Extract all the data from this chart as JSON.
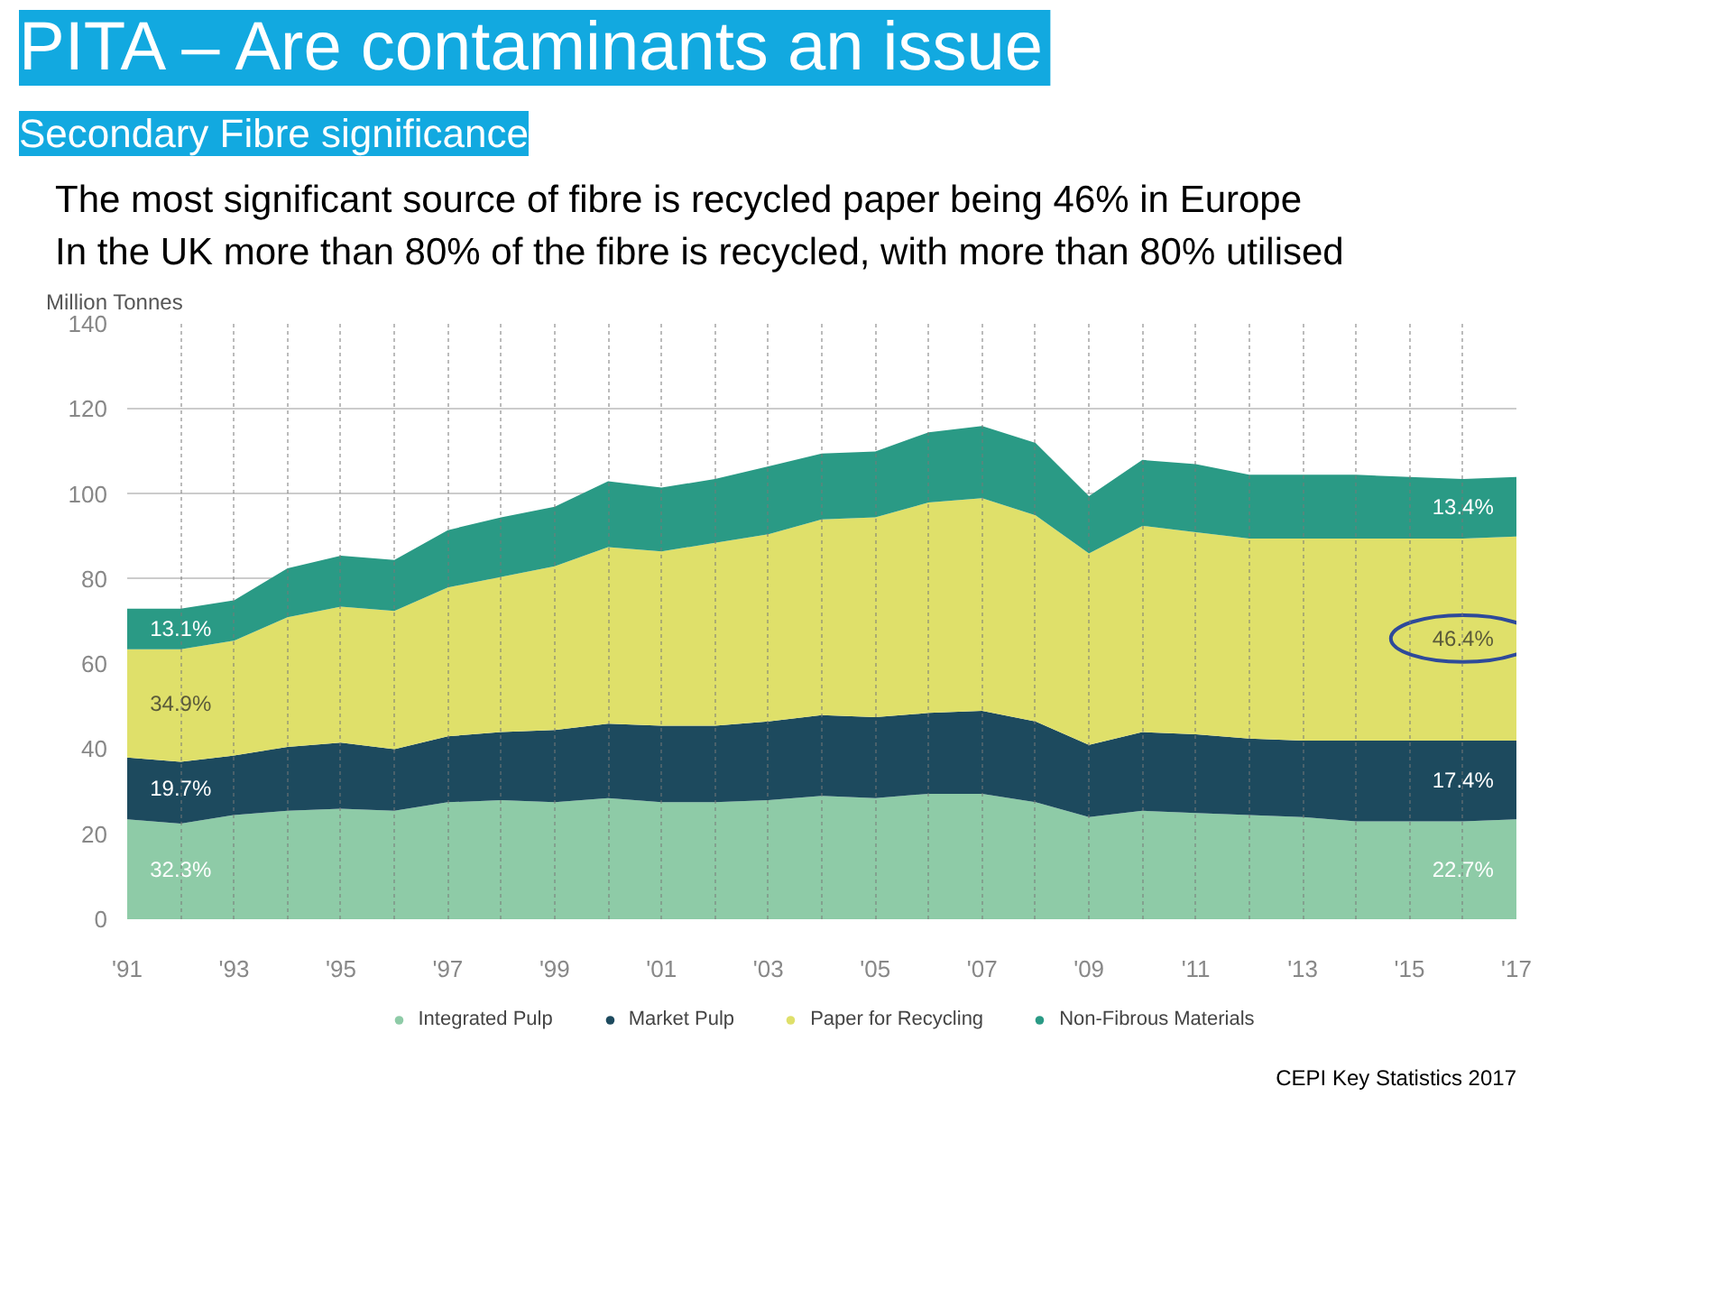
{
  "chart_data": {
    "type": "area",
    "stacked": true,
    "title": "PITA – Are contaminants an issue",
    "subtitle": "Secondary Fibre significance",
    "ylabel": "Million Tonnes",
    "x": [
      1991,
      1992,
      1993,
      1994,
      1995,
      1996,
      1997,
      1998,
      1999,
      2000,
      2001,
      2002,
      2003,
      2004,
      2005,
      2006,
      2007,
      2008,
      2009,
      2010,
      2011,
      2012,
      2013,
      2014,
      2015,
      2016,
      2017
    ],
    "series": [
      {
        "name": "Integrated Pulp",
        "color": "#8ecba7",
        "values": [
          23.5,
          22.5,
          24.5,
          25.5,
          26,
          25.5,
          27.5,
          28,
          27.5,
          28.5,
          27.5,
          27.5,
          28,
          29,
          28.5,
          29.5,
          29.5,
          27.5,
          24,
          25.5,
          25,
          24.5,
          24,
          23,
          23,
          23,
          23.5
        ]
      },
      {
        "name": "Market Pulp",
        "color": "#1d4a5e",
        "values": [
          14.5,
          14.5,
          14,
          15,
          15.5,
          14.5,
          15.5,
          16,
          17,
          17.5,
          18,
          18,
          18.5,
          19,
          19,
          19,
          19.5,
          19,
          17,
          18.5,
          18.5,
          18,
          18,
          19,
          19,
          19,
          18.5
        ]
      },
      {
        "name": "Paper for Recycling",
        "color": "#dfe06a",
        "values": [
          25.5,
          26.5,
          27,
          30.5,
          32,
          32.5,
          35,
          36.5,
          38.5,
          41.5,
          41,
          43,
          44,
          46,
          47,
          49.5,
          50,
          48.5,
          45,
          48.5,
          47.5,
          47,
          47.5,
          47.5,
          47.5,
          47.5,
          48
        ]
      },
      {
        "name": "Non-Fibrous Materials",
        "color": "#2a9a85",
        "values": [
          9.5,
          9.5,
          9.5,
          11.5,
          12,
          12,
          13.5,
          14,
          14,
          15.5,
          15,
          15,
          16,
          15.5,
          15.5,
          16.5,
          17,
          17,
          13.5,
          15.5,
          16,
          15,
          15,
          15,
          14.5,
          14,
          14
        ]
      }
    ],
    "xlim": [
      1991,
      2017
    ],
    "xticks": [
      {
        "value": 1991,
        "label": "'91"
      },
      {
        "value": 1992,
        "label": null
      },
      {
        "value": 1993,
        "label": "'93"
      },
      {
        "value": 1994,
        "label": null
      },
      {
        "value": 1995,
        "label": "'95"
      },
      {
        "value": 1996,
        "label": null
      },
      {
        "value": 1997,
        "label": "'97"
      },
      {
        "value": 1998,
        "label": null
      },
      {
        "value": 1999,
        "label": "'99"
      },
      {
        "value": 2000,
        "label": null
      },
      {
        "value": 2001,
        "label": "'01"
      },
      {
        "value": 2002,
        "label": null
      },
      {
        "value": 2003,
        "label": "'03"
      },
      {
        "value": 2004,
        "label": null
      },
      {
        "value": 2005,
        "label": "'05"
      },
      {
        "value": 2006,
        "label": null
      },
      {
        "value": 2007,
        "label": "'07"
      },
      {
        "value": 2008,
        "label": null
      },
      {
        "value": 2009,
        "label": "'09"
      },
      {
        "value": 2010,
        "label": null
      },
      {
        "value": 2011,
        "label": "'11"
      },
      {
        "value": 2012,
        "label": null
      },
      {
        "value": 2013,
        "label": "'13"
      },
      {
        "value": 2014,
        "label": null
      },
      {
        "value": 2015,
        "label": "'15"
      },
      {
        "value": 2016,
        "label": null
      },
      {
        "value": 2017,
        "label": "'17"
      }
    ],
    "ylim": [
      0,
      140
    ],
    "yticks": [
      0,
      20,
      40,
      60,
      80,
      100,
      120,
      140
    ],
    "grid": true,
    "legend": "bottom",
    "annotations": [
      "The most significant source of fibre is recycled paper being 46% in Europe",
      "In the UK more than 80% of the fibre is recycled, with more than 80% utilised",
      "13.1%",
      "34.9%",
      "19.7%",
      "32.3%",
      "13.4%",
      "46.4%",
      "17.4%",
      "22.7%",
      "CEPI Key Statistics 2017"
    ]
  }
}
